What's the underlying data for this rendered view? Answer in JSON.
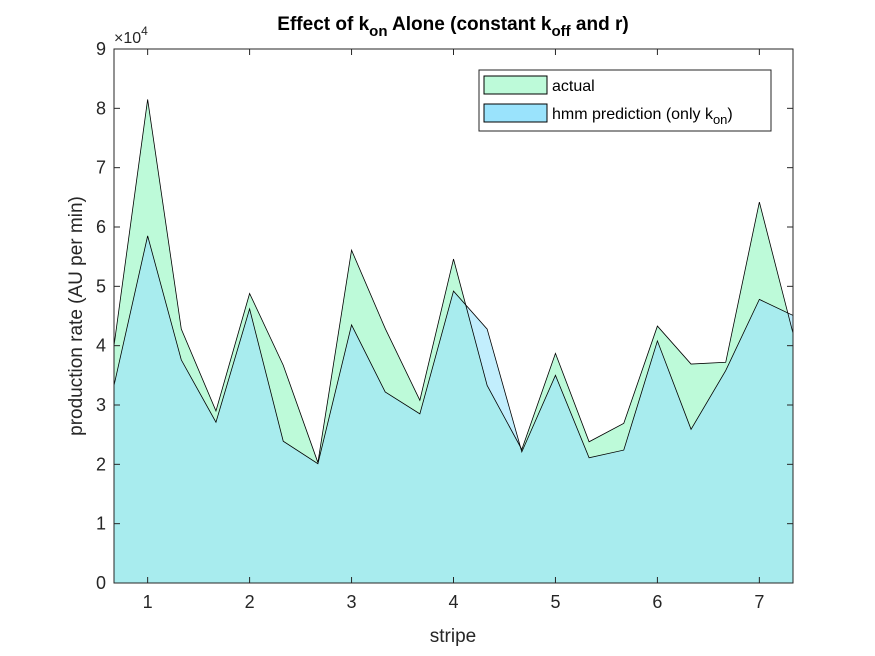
{
  "chart_data": {
    "type": "area",
    "title": {
      "prefix": "Effect of k",
      "sub1": "on",
      "middle": " Alone (constant k",
      "sub2": "off",
      "suffix": " and r)"
    },
    "xlabel": "stripe",
    "ylabel": "production rate (AU per min)",
    "y_multiplier": {
      "base": "×10",
      "exponent": "4"
    },
    "xlim": [
      0.67,
      7.33
    ],
    "ylim": [
      0,
      9
    ],
    "xticks": [
      1,
      2,
      3,
      4,
      5,
      6,
      7
    ],
    "yticks": [
      0,
      1,
      2,
      3,
      4,
      5,
      6,
      7,
      8,
      9
    ],
    "x": [
      0.67,
      1.0,
      1.33,
      1.67,
      2.0,
      2.33,
      2.67,
      3.0,
      3.33,
      3.67,
      4.0,
      4.33,
      4.67,
      5.0,
      5.33,
      5.67,
      6.0,
      6.33,
      6.67,
      7.0,
      7.33
    ],
    "series": [
      {
        "name": "actual",
        "color": "#bdfad9",
        "values": [
          4.0,
          8.15,
          4.28,
          2.9,
          4.88,
          3.67,
          2.03,
          5.61,
          4.29,
          3.08,
          5.46,
          3.33,
          2.25,
          3.87,
          2.38,
          2.69,
          4.33,
          3.69,
          3.72,
          6.42,
          4.21
        ]
      },
      {
        "name": "hmm prediction (only k",
        "name_sub": "on",
        "name_suffix": ")",
        "color": "#9ae3fc",
        "values": [
          3.33,
          5.85,
          3.76,
          2.71,
          4.62,
          2.39,
          2.01,
          4.35,
          3.22,
          2.85,
          4.92,
          4.28,
          2.21,
          3.5,
          2.11,
          2.24,
          4.08,
          2.59,
          3.58,
          4.78,
          4.51
        ]
      }
    ],
    "overlap_color": "#6fe2e5",
    "legend_position": "top-right",
    "grid": false
  }
}
